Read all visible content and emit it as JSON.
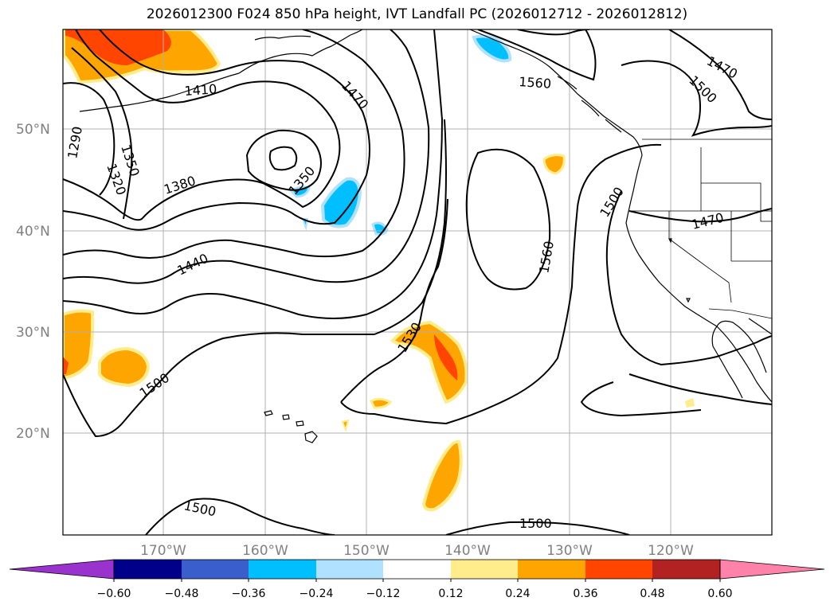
{
  "title": "2026012300 F024 850 hPa height, IVT Landfall PC (2026012712 - 2026012812)",
  "colors": {
    "frame": "#000000",
    "grid": "#b0b0b0",
    "contour": "#000000",
    "coast": "#000000",
    "bins": [
      "#9a32cd",
      "#00008b",
      "#3a5fcd",
      "#00bfff",
      "#b0e2ff",
      "#ffffff",
      "#ffec8b",
      "#ffa500",
      "#ff4500",
      "#b22222",
      "#ff82ab"
    ]
  },
  "lat_labels": [
    "50°N",
    "40°N",
    "30°N",
    "20°N"
  ],
  "lon_labels": [
    "170°W",
    "160°W",
    "150°W",
    "140°W",
    "130°W",
    "120°W"
  ],
  "colorbar": {
    "ticks": [
      "−0.60",
      "−0.48",
      "−0.36",
      "−0.24",
      "−0.12",
      "0.12",
      "0.24",
      "0.36",
      "0.48",
      "0.60"
    ]
  },
  "contour_labels": [
    "1290",
    "1320",
    "1350",
    "1410",
    "1470",
    "1380",
    "1350",
    "1440",
    "1500",
    "1530",
    "1560",
    "1560",
    "1470",
    "1500",
    "1500",
    "1470",
    "1500",
    "1500"
  ],
  "shade_regions": [
    {
      "name": "ivt-north-gulf-orange",
      "level": "0.24"
    },
    {
      "name": "ivt-north-gulf-red",
      "level": "0.36"
    },
    {
      "name": "ivt-alaska-panhandle-blue",
      "level": "-0.24"
    },
    {
      "name": "ivt-central-blue",
      "level": "-0.24"
    },
    {
      "name": "ivt-subtropical-orange",
      "level": "0.24"
    },
    {
      "name": "ivt-subtropical-red",
      "level": "0.36"
    },
    {
      "name": "ivt-west-orange",
      "level": "0.24"
    },
    {
      "name": "ivt-south-orange",
      "level": "0.24"
    }
  ]
}
